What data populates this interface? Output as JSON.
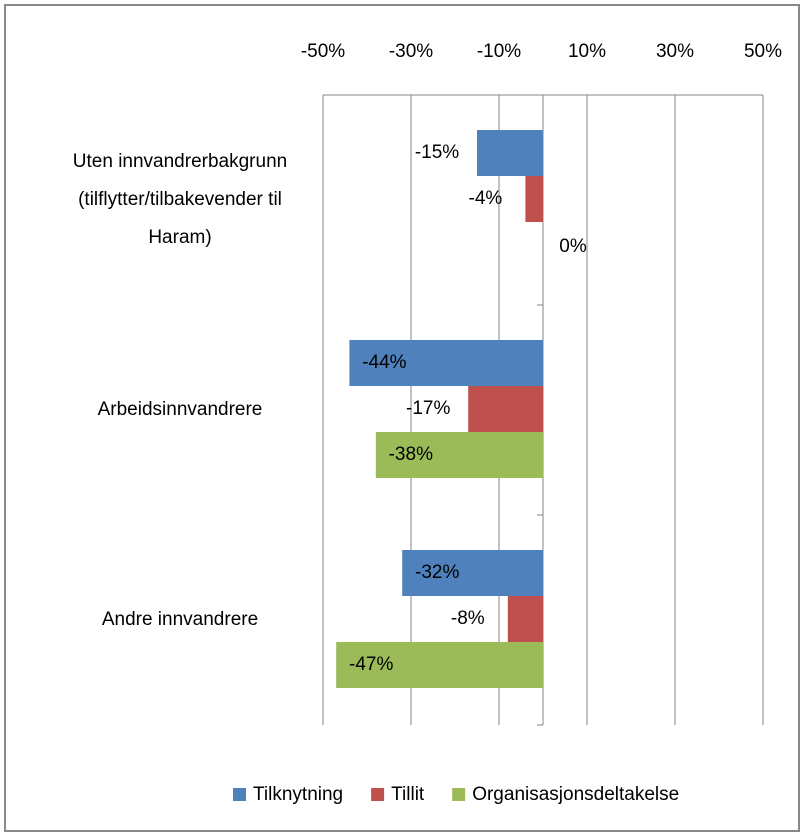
{
  "chart_data": {
    "type": "bar",
    "orientation": "horizontal",
    "categories": [
      "Uten innvandrerbakgrunn (tilflytter/tilbakevender til Haram)",
      "Arbeidsinnvandrere",
      "Andre innvandrere"
    ],
    "series": [
      {
        "name": "Tilknytning",
        "color": "#4f81bd",
        "values": [
          -15,
          -44,
          -32
        ],
        "value_labels": [
          "-15%",
          "-44%",
          "-32%"
        ]
      },
      {
        "name": "Tillit",
        "color": "#c0504d",
        "values": [
          -4,
          -17,
          -8
        ],
        "value_labels": [
          "-4%",
          "-17%",
          "-8%"
        ]
      },
      {
        "name": "Organisasjonsdeltakelse",
        "color": "#9bbb59",
        "values": [
          0,
          -38,
          -47
        ],
        "value_labels": [
          "0%",
          "-38%",
          "-47%"
        ]
      }
    ],
    "xlim": [
      -50,
      50
    ],
    "xticks": [
      {
        "value": -50,
        "label": "-50%"
      },
      {
        "value": -30,
        "label": "-30%"
      },
      {
        "value": -10,
        "label": "-10%"
      },
      {
        "value": 10,
        "label": "10%"
      },
      {
        "value": 30,
        "label": "30%"
      },
      {
        "value": 50,
        "label": "50%"
      }
    ],
    "grid": true,
    "legend": "bottom"
  }
}
